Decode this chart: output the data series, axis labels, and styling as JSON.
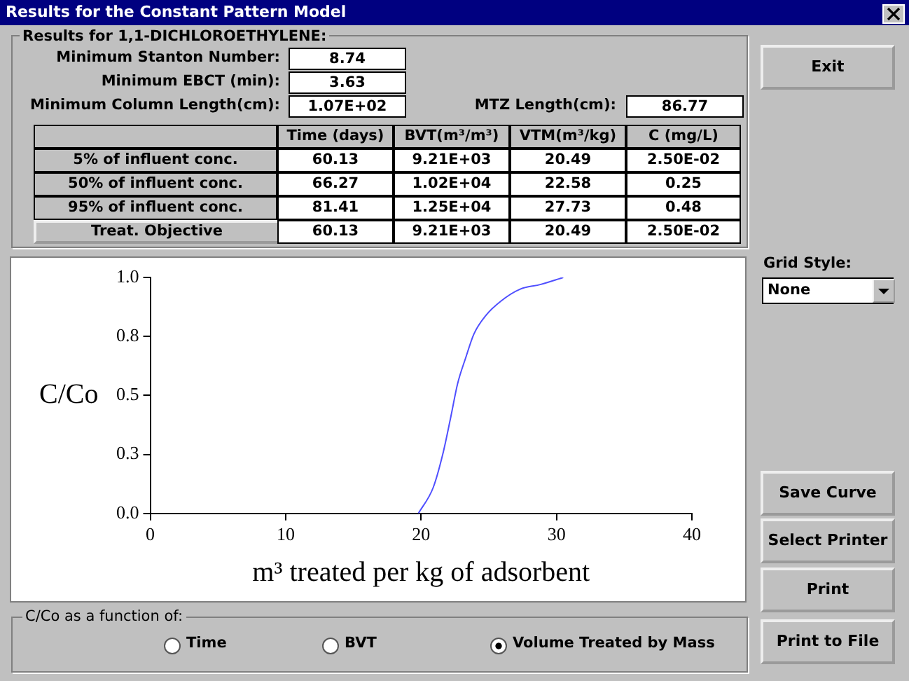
{
  "chart_data": [
    {
      "type": "other",
      "title": "Results for the Constant Pattern Model",
      "subtitle": "Results for 1,1-DICHLOROETHYLENE:",
      "annotations": [
        "Minimum Stanton Number:",
        "8.74",
        "Minimum EBCT (min):",
        "3.63",
        "Minimum Column Length(cm):",
        "1.07E+02",
        "MTZ Length(cm):",
        "86.77",
        "Time (days)",
        "BVT(m³/m³)",
        "VTM(m³/kg)",
        "C (mg/L)",
        "5% of influent conc.",
        "60.13",
        "9.21E+03",
        "20.49",
        "2.50E-02",
        "50% of influent conc.",
        "66.27",
        "1.02E+04",
        "22.58",
        "0.25",
        "95% of influent conc.",
        "81.41",
        "1.25E+04",
        "27.73",
        "0.48",
        "Treat. Objective",
        "60.13",
        "9.21E+03",
        "20.49",
        "2.50E-02",
        "Grid Style:",
        "None",
        "Exit",
        "Save Curve",
        "Select Printer",
        "Print",
        "Print to File",
        "C/Co as a function of:",
        "Time",
        "BVT",
        "Volume Treated by Mass"
      ]
    },
    {
      "type": "line",
      "xlabel": "m³ treated per kg of adsorbent",
      "ylabel": "C/Co",
      "grid": false,
      "legend": false,
      "marker": "none",
      "xlim": [
        0,
        40
      ],
      "xticks": [
        0,
        10,
        20,
        30,
        40
      ],
      "ylim": [
        0,
        1
      ],
      "yticks": [
        {
          "value": 0,
          "label": "0.0"
        },
        {
          "value": 0.25,
          "label": "0.3"
        },
        {
          "value": 0.5,
          "label": "0.5"
        },
        {
          "value": 0.75,
          "label": "0.8"
        },
        {
          "value": 1,
          "label": "1.0"
        }
      ],
      "series": [
        {
          "color": "#4f4fff",
          "x": [
            19.8,
            20.9,
            21.6,
            22.2,
            22.7,
            23.3,
            23.9,
            24.8,
            25.9,
            27.3,
            28.8,
            30.5
          ],
          "values": [
            0,
            0.11,
            0.25,
            0.41,
            0.55,
            0.66,
            0.76,
            0.84,
            0.9,
            0.95,
            0.97,
            1.0
          ]
        }
      ]
    }
  ]
}
